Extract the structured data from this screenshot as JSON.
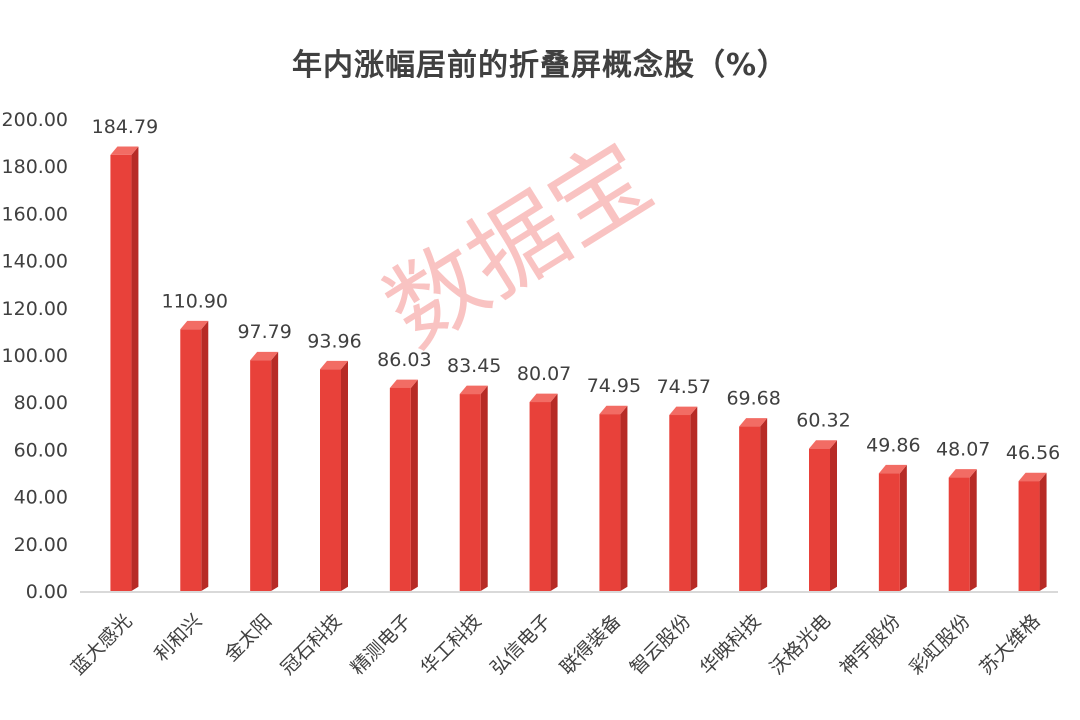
{
  "chart_data": {
    "type": "bar",
    "title": "年内涨幅居前的折叠屏概念股（%）",
    "categories": [
      "蓝大感光",
      "利和兴",
      "金太阳",
      "冠石科技",
      "精测电子",
      "华工科技",
      "弘信电子",
      "联得装备",
      "智云股份",
      "华映科技",
      "沃格光电",
      "神宇股份",
      "彩虹股份",
      "苏大维格"
    ],
    "values": [
      184.79,
      110.9,
      97.79,
      93.96,
      86.03,
      83.45,
      80.07,
      74.95,
      74.57,
      69.68,
      60.32,
      49.86,
      48.07,
      46.56
    ],
    "data_labels": [
      "184.79",
      "110.90",
      "97.79",
      "93.96",
      "86.03",
      "83.45",
      "80.07",
      "74.95",
      "74.57",
      "69.68",
      "60.32",
      "49.86",
      "48.07",
      "46.56"
    ],
    "y_ticks": [
      "0.00",
      "20.00",
      "40.00",
      "60.00",
      "80.00",
      "100.00",
      "120.00",
      "140.00",
      "160.00",
      "180.00",
      "200.00"
    ],
    "ylim": [
      0,
      200
    ],
    "xlabel": "",
    "ylabel": "",
    "grid": false,
    "legend": "none",
    "colors": {
      "bar": "#e8413a",
      "bar_side": "#b72b26",
      "bar_top": "#f26c64",
      "text": "#404040",
      "axis": "#d9d9d9"
    }
  },
  "watermark": "数据宝"
}
